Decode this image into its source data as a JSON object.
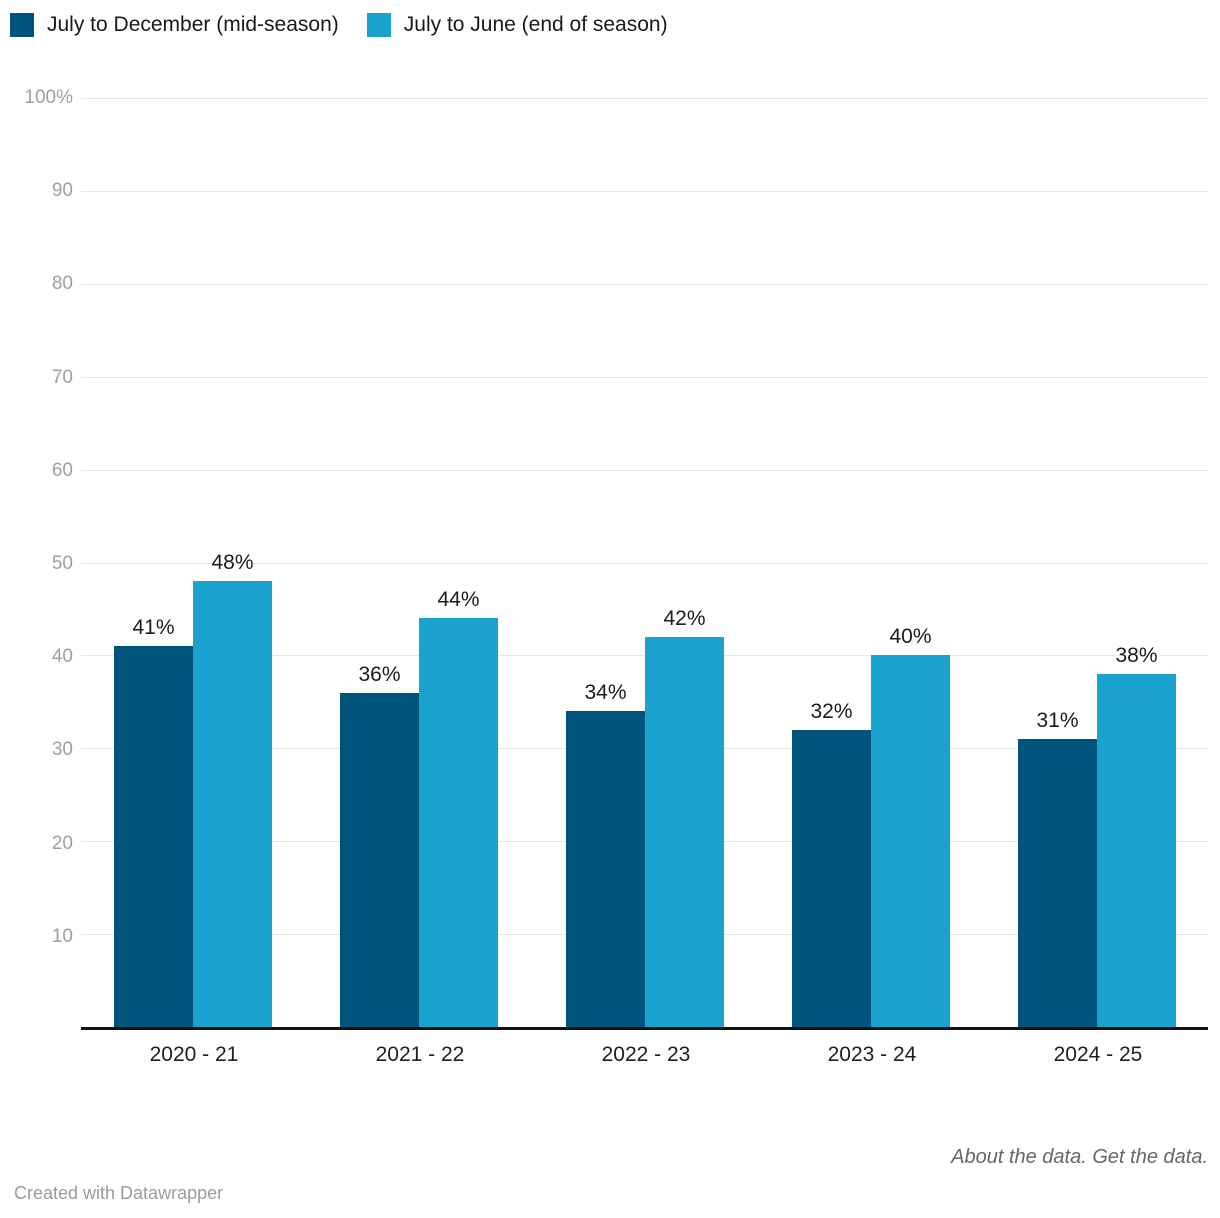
{
  "chart_data": {
    "type": "bar",
    "title": "",
    "categories": [
      "2020 - 21",
      "2021 - 22",
      "2022 - 23",
      "2023 - 24",
      "2024 - 25"
    ],
    "series": [
      {
        "name": "July to December (mid-season)",
        "color": "#00547c",
        "values": [
          41,
          36,
          34,
          32,
          31
        ]
      },
      {
        "name": "July to June (end of season)",
        "color": "#1aa2cf",
        "values": [
          48,
          44,
          42,
          40,
          38
        ]
      }
    ],
    "value_labels": [
      [
        "41%",
        "36%",
        "34%",
        "32%",
        "31%"
      ],
      [
        "48%",
        "44%",
        "42%",
        "40%",
        "38%"
      ]
    ],
    "ylim": [
      0,
      100
    ],
    "yticks": [
      {
        "value": 100,
        "label": "100%"
      },
      {
        "value": 90,
        "label": "90"
      },
      {
        "value": 80,
        "label": "80"
      },
      {
        "value": 70,
        "label": "70"
      },
      {
        "value": 60,
        "label": "60"
      },
      {
        "value": 50,
        "label": "50"
      },
      {
        "value": 40,
        "label": "40"
      },
      {
        "value": 30,
        "label": "30"
      },
      {
        "value": 20,
        "label": "20"
      },
      {
        "value": 10,
        "label": "10"
      }
    ],
    "grid": true,
    "legend_position": "top-left",
    "xlabel": "",
    "ylabel": ""
  },
  "layout_colors": {
    "grid": "#e8e8e8",
    "axis_baseline": "#121212",
    "tick_label": "#9e9e9e",
    "value_label": "#1b1b1b",
    "category_label": "#1f1f1f"
  },
  "footer": {
    "links": [
      {
        "label": "About the data."
      },
      {
        "label": "Get the data."
      }
    ],
    "attribution": "Created with Datawrapper"
  }
}
